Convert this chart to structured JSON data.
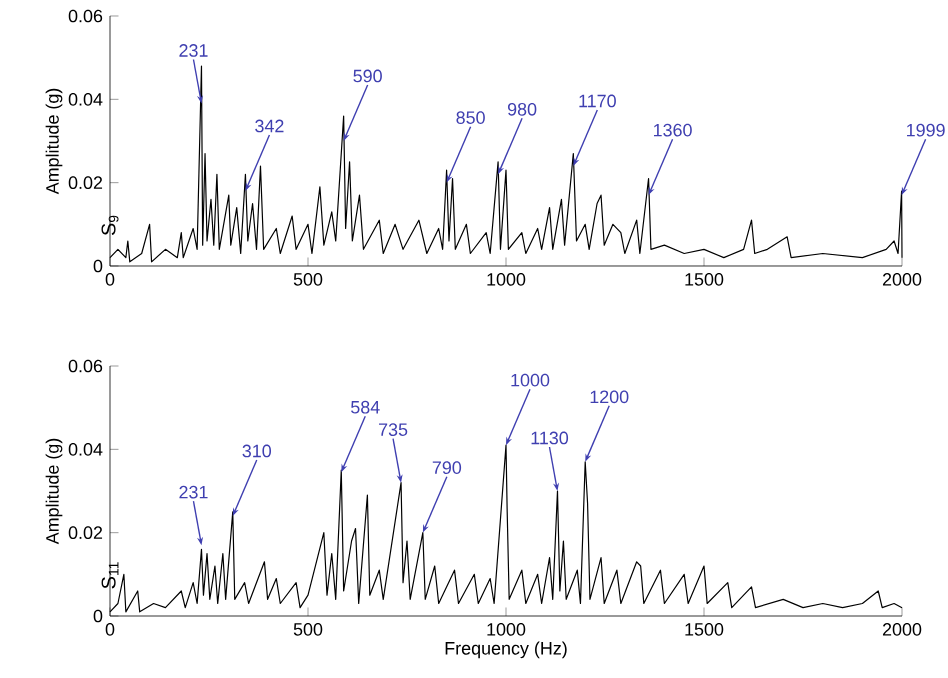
{
  "chart_data": [
    {
      "type": "line",
      "color": "#000000",
      "ylabel": "Amplitude (g)",
      "xlim": [
        0,
        2000
      ],
      "ylim": [
        0,
        0.06
      ],
      "xticks": [
        0,
        500,
        1000,
        1500,
        2000
      ],
      "yticks": [
        0,
        0.02,
        0.04,
        0.06
      ],
      "grid": false,
      "marker": "none",
      "line_style": "solid",
      "x": [
        0,
        20,
        40,
        45,
        50,
        80,
        100,
        105,
        140,
        170,
        180,
        185,
        210,
        220,
        231,
        234,
        240,
        245,
        255,
        262,
        270,
        276,
        300,
        305,
        320,
        330,
        342,
        348,
        360,
        370,
        380,
        388,
        420,
        430,
        460,
        470,
        500,
        510,
        530,
        540,
        560,
        570,
        590,
        595,
        605,
        612,
        630,
        640,
        680,
        690,
        720,
        740,
        780,
        800,
        830,
        840,
        850,
        856,
        865,
        872,
        900,
        910,
        950,
        960,
        980,
        986,
        1000,
        1006,
        1040,
        1050,
        1080,
        1090,
        1110,
        1118,
        1140,
        1148,
        1170,
        1178,
        1200,
        1210,
        1230,
        1240,
        1248,
        1270,
        1290,
        1300,
        1330,
        1338,
        1360,
        1366,
        1400,
        1450,
        1500,
        1550,
        1600,
        1620,
        1628,
        1660,
        1710,
        1720,
        1800,
        1900,
        1960,
        1980,
        1990,
        1999,
        2000
      ],
      "values": [
        0.002,
        0.004,
        0.002,
        0.006,
        0.001,
        0.003,
        0.01,
        0.001,
        0.004,
        0.002,
        0.008,
        0.002,
        0.009,
        0.004,
        0.048,
        0.005,
        0.027,
        0.006,
        0.016,
        0.005,
        0.022,
        0.004,
        0.017,
        0.005,
        0.014,
        0.003,
        0.022,
        0.006,
        0.015,
        0.004,
        0.024,
        0.004,
        0.009,
        0.003,
        0.012,
        0.004,
        0.01,
        0.003,
        0.019,
        0.005,
        0.013,
        0.006,
        0.036,
        0.009,
        0.025,
        0.006,
        0.017,
        0.004,
        0.011,
        0.003,
        0.01,
        0.004,
        0.011,
        0.003,
        0.009,
        0.004,
        0.023,
        0.006,
        0.021,
        0.004,
        0.01,
        0.003,
        0.008,
        0.003,
        0.025,
        0.004,
        0.023,
        0.004,
        0.008,
        0.003,
        0.009,
        0.004,
        0.014,
        0.004,
        0.016,
        0.005,
        0.027,
        0.006,
        0.01,
        0.004,
        0.015,
        0.017,
        0.005,
        0.01,
        0.008,
        0.003,
        0.011,
        0.003,
        0.021,
        0.004,
        0.005,
        0.003,
        0.004,
        0.002,
        0.004,
        0.011,
        0.003,
        0.004,
        0.007,
        0.002,
        0.003,
        0.002,
        0.004,
        0.006,
        0.003,
        0.018,
        0.002
      ],
      "annotations": [
        "S$_{9}$",
        {
          "text": "231",
          "x": 231,
          "y": 0.039
        },
        {
          "text": "342",
          "x": 342,
          "y": 0.018
        },
        {
          "text": "590",
          "x": 590,
          "y": 0.03
        },
        {
          "text": "850",
          "x": 850,
          "y": 0.02
        },
        {
          "text": "980",
          "x": 980,
          "y": 0.022
        },
        {
          "text": "1170",
          "x": 1170,
          "y": 0.024
        },
        {
          "text": "1360",
          "x": 1360,
          "y": 0.017
        },
        {
          "text": "1999",
          "x": 1999,
          "y": 0.017
        }
      ]
    },
    {
      "type": "line",
      "color": "#000000",
      "xlabel": "Frequency  (Hz)",
      "ylabel": "Amplitude (g)",
      "xlim": [
        0,
        2000
      ],
      "ylim": [
        0,
        0.06
      ],
      "xticks": [
        0,
        500,
        1000,
        1500,
        2000
      ],
      "yticks": [
        0,
        0.02,
        0.04,
        0.06
      ],
      "grid": false,
      "marker": "none",
      "line_style": "solid",
      "x": [
        0,
        20,
        35,
        40,
        70,
        75,
        110,
        140,
        180,
        190,
        210,
        220,
        231,
        236,
        245,
        252,
        265,
        272,
        285,
        292,
        310,
        315,
        340,
        350,
        390,
        398,
        420,
        430,
        470,
        480,
        500,
        540,
        548,
        560,
        570,
        584,
        590,
        610,
        620,
        628,
        650,
        656,
        680,
        690,
        735,
        740,
        750,
        758,
        790,
        796,
        820,
        830,
        870,
        880,
        920,
        930,
        960,
        970,
        1000,
        1003,
        1008,
        1040,
        1050,
        1080,
        1090,
        1110,
        1118,
        1130,
        1136,
        1145,
        1152,
        1180,
        1188,
        1200,
        1206,
        1212,
        1240,
        1248,
        1280,
        1290,
        1330,
        1340,
        1348,
        1390,
        1400,
        1450,
        1460,
        1500,
        1508,
        1560,
        1570,
        1620,
        1630,
        1700,
        1750,
        1800,
        1850,
        1900,
        1940,
        1950,
        1980,
        2000
      ],
      "values": [
        0.001,
        0.003,
        0.01,
        0.001,
        0.006,
        0.001,
        0.003,
        0.002,
        0.006,
        0.002,
        0.008,
        0.003,
        0.016,
        0.005,
        0.015,
        0.004,
        0.012,
        0.003,
        0.015,
        0.004,
        0.025,
        0.004,
        0.008,
        0.003,
        0.013,
        0.004,
        0.009,
        0.003,
        0.008,
        0.002,
        0.005,
        0.02,
        0.005,
        0.015,
        0.004,
        0.035,
        0.006,
        0.018,
        0.021,
        0.003,
        0.029,
        0.005,
        0.011,
        0.004,
        0.032,
        0.008,
        0.018,
        0.004,
        0.02,
        0.004,
        0.012,
        0.003,
        0.011,
        0.003,
        0.01,
        0.003,
        0.009,
        0.003,
        0.041,
        0.025,
        0.004,
        0.011,
        0.003,
        0.01,
        0.003,
        0.014,
        0.004,
        0.03,
        0.006,
        0.018,
        0.004,
        0.011,
        0.003,
        0.037,
        0.027,
        0.004,
        0.014,
        0.003,
        0.011,
        0.003,
        0.013,
        0.012,
        0.003,
        0.011,
        0.003,
        0.01,
        0.003,
        0.012,
        0.003,
        0.008,
        0.002,
        0.007,
        0.002,
        0.004,
        0.002,
        0.003,
        0.002,
        0.003,
        0.006,
        0.002,
        0.003,
        0.002
      ],
      "annotations": [
        "S$_{11}$",
        {
          "text": "231",
          "x": 231,
          "y": 0.017
        },
        {
          "text": "310",
          "x": 310,
          "y": 0.024
        },
        {
          "text": "584",
          "x": 584,
          "y": 0.0345
        },
        {
          "text": "735",
          "x": 735,
          "y": 0.032
        },
        {
          "text": "790",
          "x": 790,
          "y": 0.02
        },
        {
          "text": "1000",
          "x": 1000,
          "y": 0.041
        },
        {
          "text": "1130",
          "x": 1130,
          "y": 0.03
        },
        {
          "text": "1200",
          "x": 1200,
          "y": 0.037
        }
      ]
    }
  ]
}
